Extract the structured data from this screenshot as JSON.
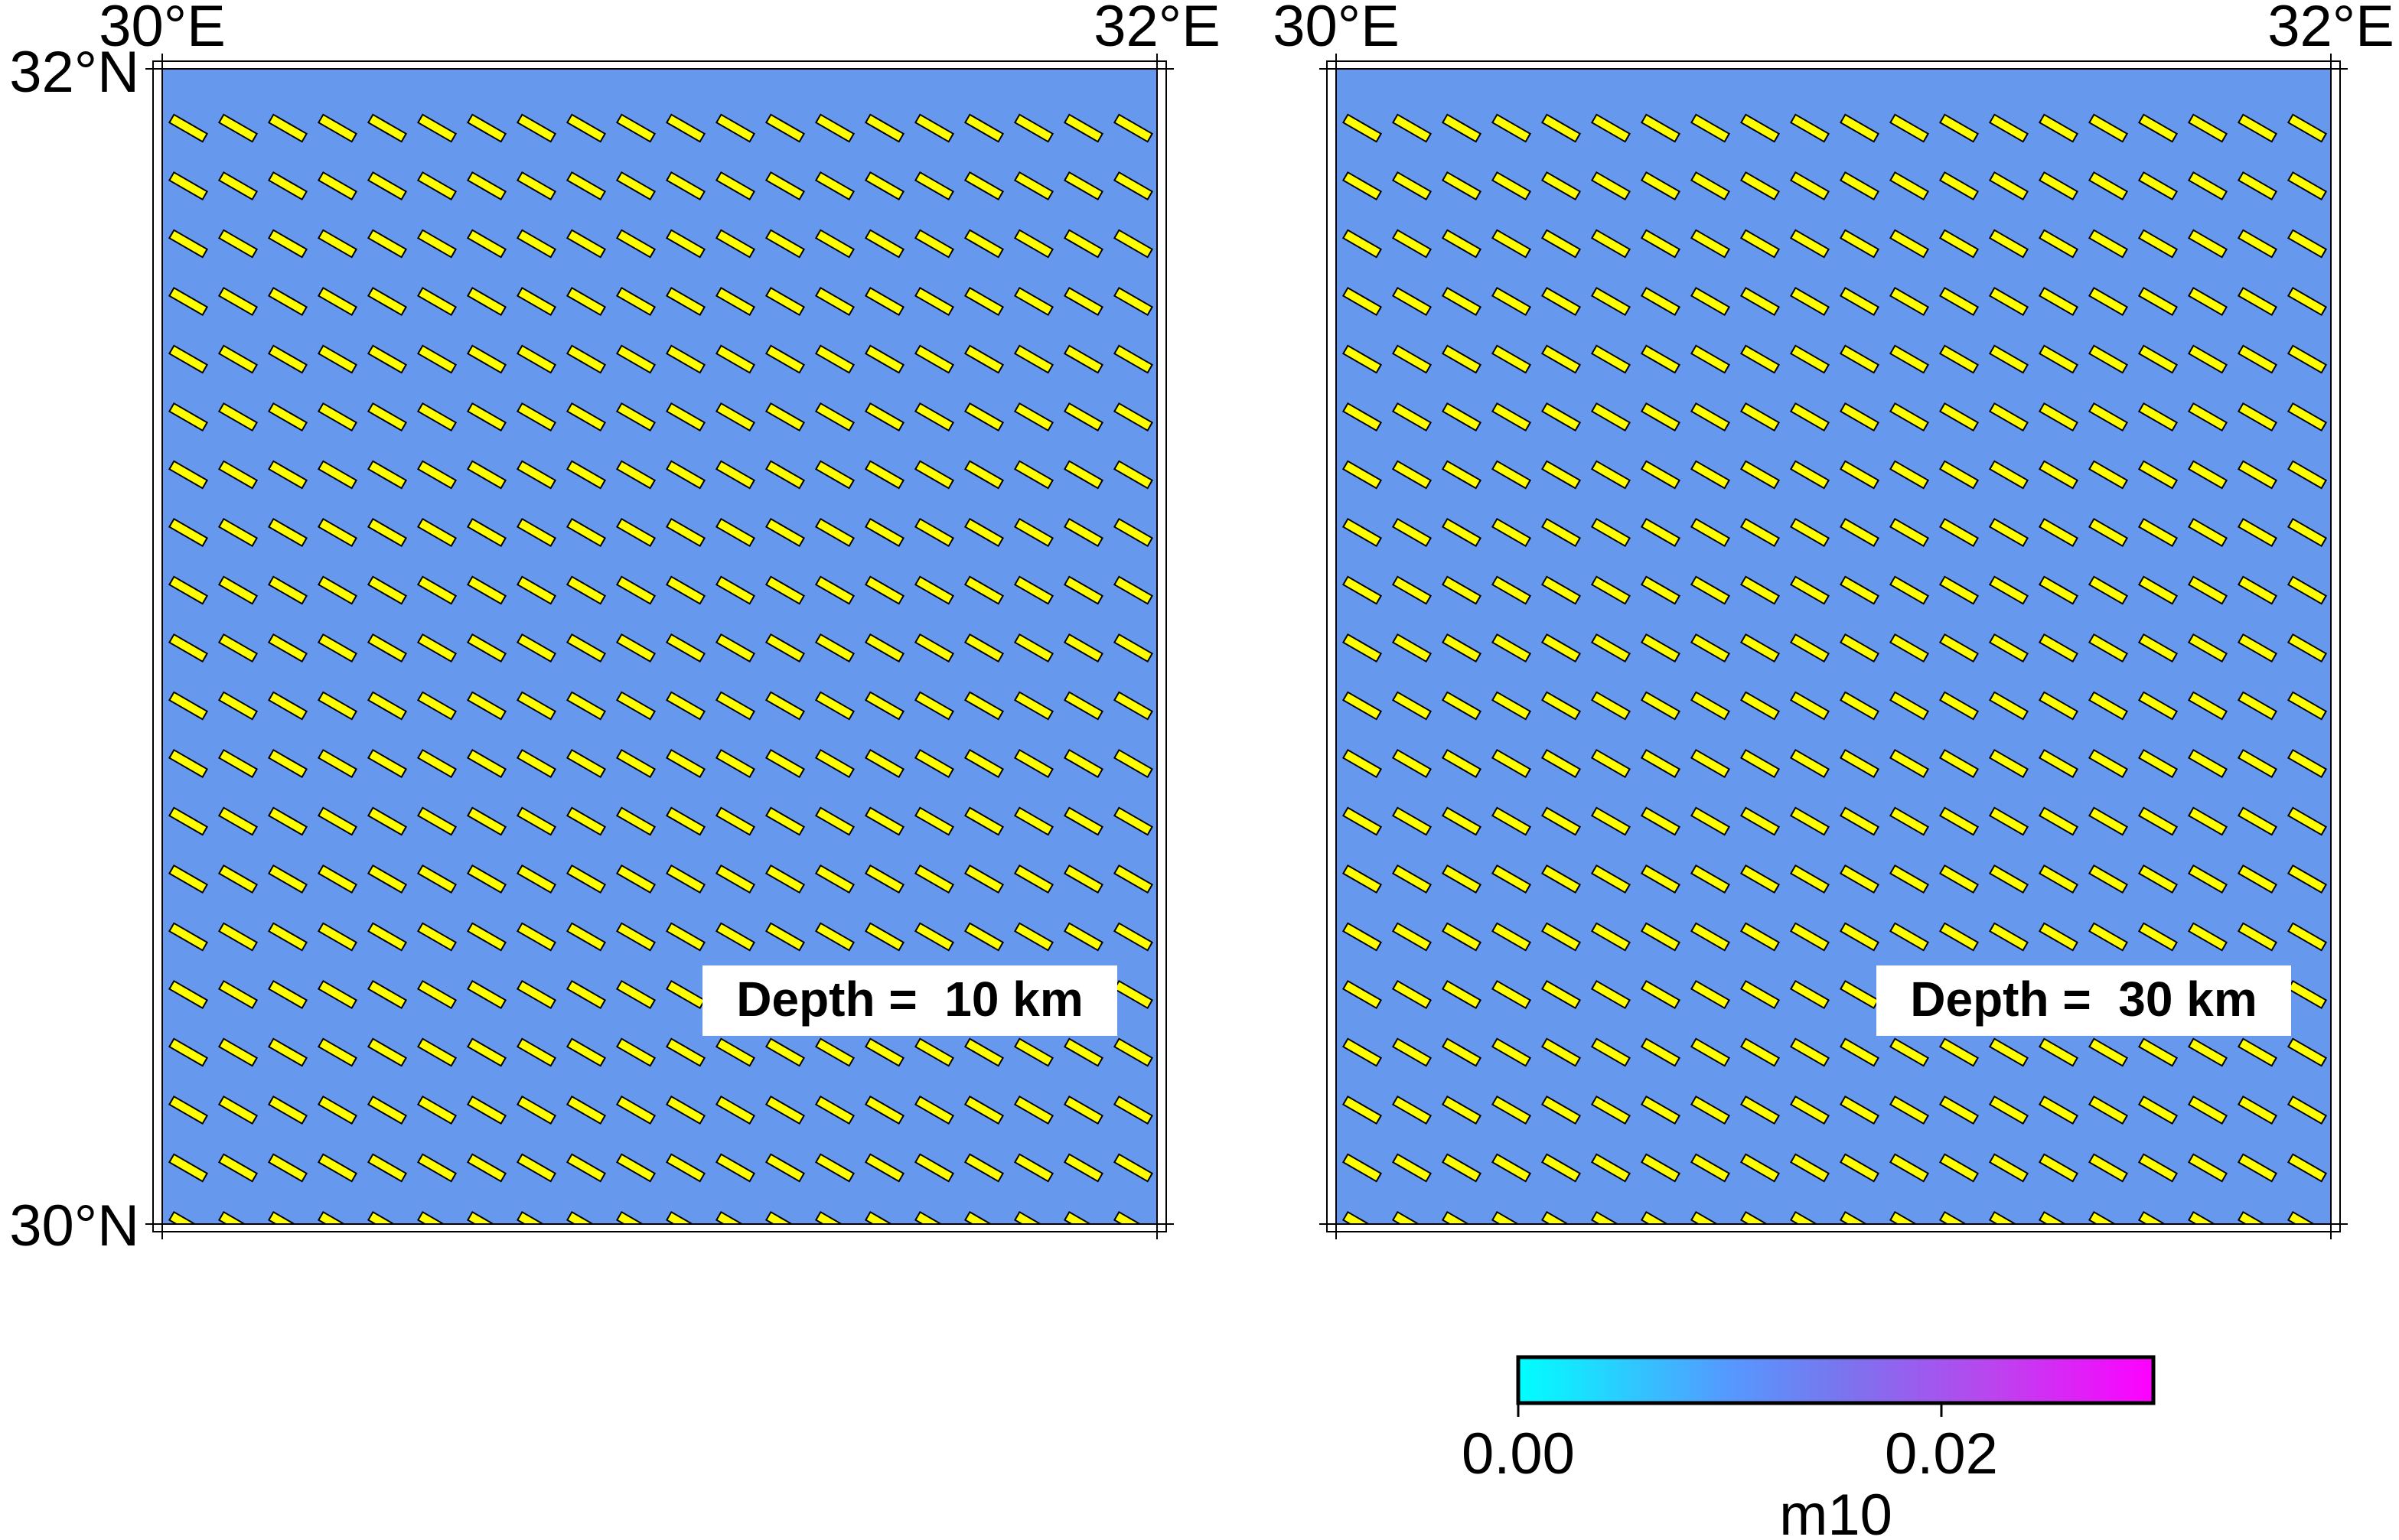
{
  "colors": {
    "background_fill": "#6699ee",
    "stick_fill": "#ffff00",
    "stick_outline": "#000000",
    "frame": "#000000",
    "label_box": "#ffffff",
    "colorbar_min": "#00ffff",
    "colorbar_mid": "#7777ee",
    "colorbar_max": "#ff00ff"
  },
  "panels": [
    {
      "x_labels": {
        "left": "30°E",
        "right": "32°E"
      },
      "y_labels": {
        "top": "32°N",
        "bottom": "30°N"
      },
      "depth_label": "Depth =  10 km"
    },
    {
      "x_labels": {
        "left": "30°E",
        "right": "32°E"
      },
      "y_labels": {
        "top": "",
        "bottom": ""
      },
      "depth_label": "Depth =  30 km"
    }
  ],
  "field": {
    "orientation_deg": -30,
    "lon_range": [
      30,
      32
    ],
    "lat_range": [
      30,
      32
    ]
  },
  "colorbar": {
    "label": "m10",
    "range": [
      0,
      0.03
    ],
    "ticks": [
      "0.00",
      "0.02"
    ]
  }
}
